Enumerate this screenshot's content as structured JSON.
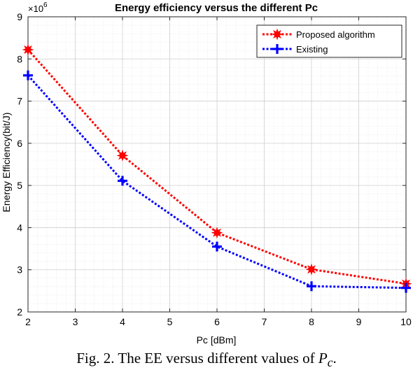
{
  "chart_data": {
    "type": "line",
    "title": "Energy efficiency versus the different Pc",
    "xlabel": "Pc [dBm]",
    "ylabel": "Energy Efficiency(bit/J)",
    "y_exponent_label": "×10",
    "y_exponent_power": "6",
    "xlim": [
      2,
      10
    ],
    "ylim": [
      2,
      9
    ],
    "xticks": [
      2,
      3,
      4,
      5,
      6,
      7,
      8,
      9,
      10
    ],
    "yticks": [
      2,
      3,
      4,
      5,
      6,
      7,
      8,
      9
    ],
    "x": [
      2,
      4,
      6,
      8,
      10
    ],
    "grid": true,
    "legend_position": "top-right",
    "series": [
      {
        "name": "Proposed algorithm",
        "values": [
          8.22,
          5.71,
          3.88,
          3.01,
          2.67
        ],
        "color": "#ff0000",
        "marker": "star"
      },
      {
        "name": "Existing",
        "values": [
          7.61,
          5.11,
          3.55,
          2.61,
          2.57
        ],
        "color": "#0000ff",
        "marker": "plus"
      }
    ]
  },
  "caption": {
    "text": "Fig. 2. The EE versus different values of",
    "symbol": "P",
    "subscript": "c",
    "end": "."
  }
}
